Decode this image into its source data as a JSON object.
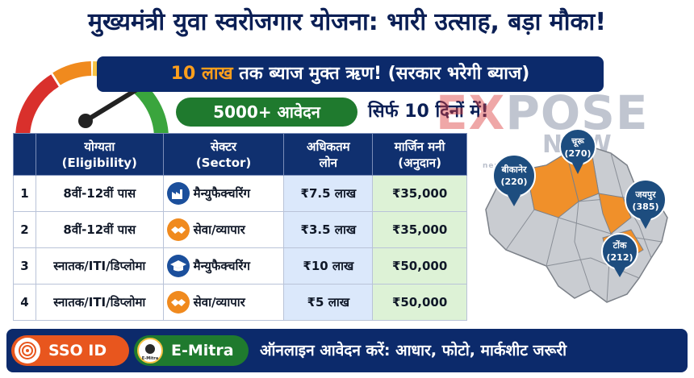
{
  "title": "मुख्यमंत्री युवा स्वरोजगार योजना: भारी उत्साह, बड़ा मौका!",
  "banner": {
    "highlight": "10 लाख",
    "rest": "तक ब्याज मुक्त ऋण! (सरकार भरेगी ब्याज)"
  },
  "applications": "5000+ आवेदन",
  "days": "सिर्फ 10 दिनों में!",
  "watermark": {
    "ex": "EX",
    "pose": "POSE",
    "now": "NOW",
    "small": "news"
  },
  "table": {
    "headers": [
      "",
      "योग्यता",
      "(Eligibility)",
      "सेक्टर",
      "(Sector)",
      "अधिकतम",
      "लोन",
      "मार्जिन मनी",
      "(अनुदान)"
    ],
    "rows": [
      {
        "num": "1",
        "eligibility": "8वीं-12वीं पास",
        "sector": "मैन्युफैक्चरिंग",
        "sector_icon": "factory-icon",
        "loan": "₹7.5 लाख",
        "margin": "₹35,000"
      },
      {
        "num": "2",
        "eligibility": "8वीं-12वीं पास",
        "sector": "सेवा/व्यापार",
        "sector_icon": "handshake-icon",
        "loan": "₹3.5 लाख",
        "margin": "₹35,000"
      },
      {
        "num": "3",
        "eligibility": "स्नातक/ITI/डिप्लोमा",
        "sector": "मैन्युफैक्चरिंग",
        "sector_icon": "graduation-cap-icon",
        "loan": "₹10 लाख",
        "margin": "₹50,000"
      },
      {
        "num": "4",
        "eligibility": "स्नातक/ITI/डिप्लोमा",
        "sector": "सेवा/व्यापार",
        "sector_icon": "handshake-icon",
        "loan": "₹5 लाख",
        "margin": "₹50,000"
      }
    ]
  },
  "map": {
    "pins": [
      {
        "name": "बीकानेर",
        "count": "(220)"
      },
      {
        "name": "चूरू",
        "count": "(270)"
      },
      {
        "name": "जयपुर",
        "count": "(385)"
      },
      {
        "name": "टोंक",
        "count": "(212)"
      }
    ]
  },
  "footer": {
    "sso": "SSO ID",
    "emitra": "E-Mitra",
    "emitra_logo_text": "E-Mitra",
    "note": "ऑनलाइन आवेदन करें: आधार, फोटो, मार्कशीट जरूरी"
  },
  "colors": {
    "navy": "#0c2a6b",
    "green": "#1f7a2e",
    "orange": "#f08a1e",
    "loan_bg": "#dbe8fb",
    "margin_bg": "#ddf2d6"
  }
}
